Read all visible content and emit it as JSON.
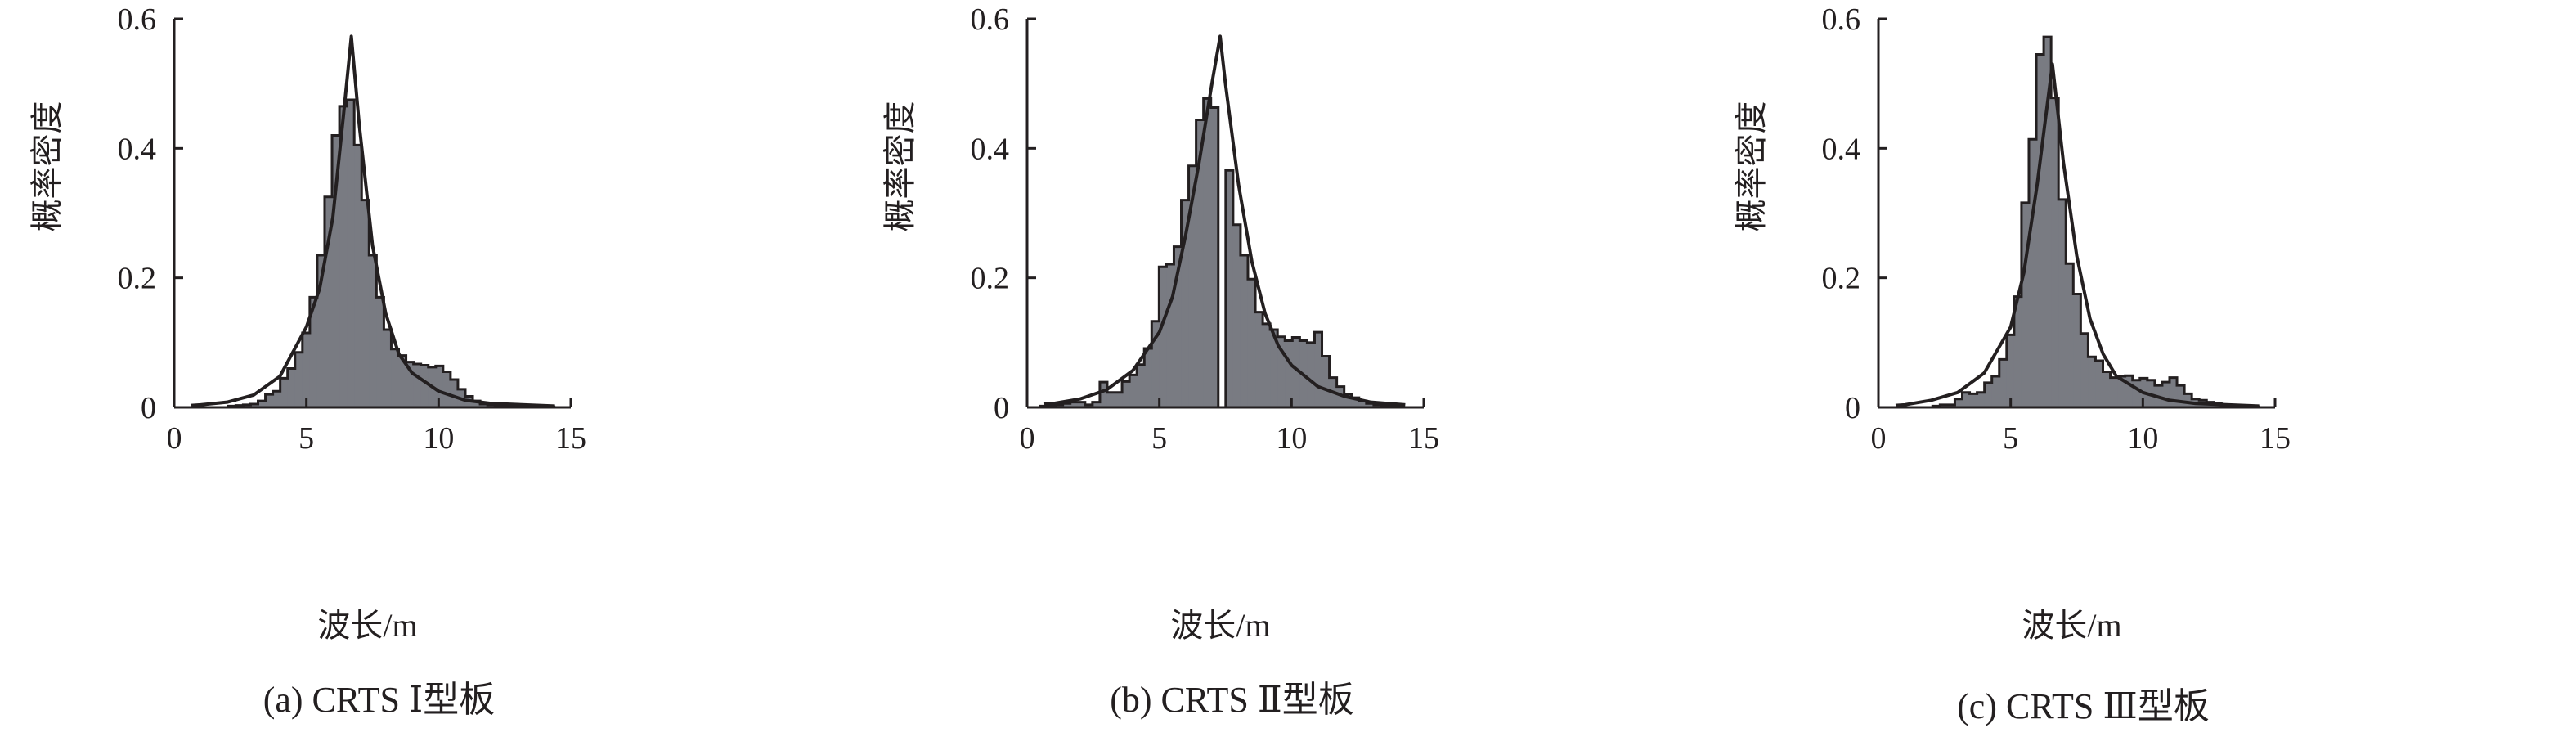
{
  "colors": {
    "bar_fill": "#797b82",
    "line": "#231f20"
  },
  "chart_data": [
    {
      "type": "bar",
      "caption": "(a) CRTS Ⅰ型板",
      "xlabel": "波长/m",
      "ylabel": "概率密度",
      "xlim": [
        0,
        15
      ],
      "ylim": [
        0,
        0.6
      ],
      "xticks": [
        "0",
        "5",
        "10",
        "15"
      ],
      "yticks": [
        "0",
        "0.2",
        "0.4",
        "0.6"
      ],
      "xtick_values": [
        0,
        5,
        10,
        15
      ],
      "ytick_values": [
        0,
        0.2,
        0.4,
        0.6
      ],
      "histogram": {
        "bin_start": 2.05,
        "bin_width": 0.28,
        "values": [
          0.002,
          0.003,
          0.004,
          0.005,
          0.01,
          0.02,
          0.025,
          0.045,
          0.06,
          0.085,
          0.115,
          0.17,
          0.235,
          0.325,
          0.42,
          0.465,
          0.475,
          0.405,
          0.32,
          0.235,
          0.17,
          0.12,
          0.09,
          0.08,
          0.07,
          0.067,
          0.065,
          0.062,
          0.064,
          0.055,
          0.043,
          0.028,
          0.017,
          0.01,
          0.005,
          0.004,
          0.003,
          0.003,
          0.002,
          0.002,
          0.002,
          0.001,
          0.001,
          0.001
        ]
      },
      "fit_curve": {
        "x": [
          0.65,
          1,
          2,
          3,
          4,
          5,
          5.5,
          6,
          6.4,
          6.7,
          7,
          7.5,
          8,
          8.5,
          9,
          10,
          11,
          12,
          14.4
        ],
        "y": [
          0.003,
          0.004,
          0.008,
          0.019,
          0.048,
          0.124,
          0.183,
          0.293,
          0.45,
          0.573,
          0.436,
          0.25,
          0.145,
          0.082,
          0.053,
          0.025,
          0.011,
          0.006,
          0.002
        ]
      }
    },
    {
      "type": "bar",
      "caption": "(b) CRTS Ⅱ型板",
      "xlabel": "波长/m",
      "ylabel": "概率密度",
      "xlim": [
        0,
        15
      ],
      "ylim": [
        0,
        0.6
      ],
      "xticks": [
        "0",
        "5",
        "10",
        "15"
      ],
      "yticks": [
        "0",
        "0.2",
        "0.4",
        "0.6"
      ],
      "xtick_values": [
        0,
        5,
        10,
        15
      ],
      "ytick_values": [
        0,
        0.2,
        0.4,
        0.6
      ],
      "histogram": {
        "bin_start": 0.51,
        "bin_width": 0.28,
        "values": [
          0.002,
          0.003,
          0.004,
          0.006,
          0.008,
          0.008,
          0.004,
          0.008,
          0.039,
          0.023,
          0.023,
          0.04,
          0.05,
          0.066,
          0.091,
          0.133,
          0.217,
          0.221,
          0.248,
          0.32,
          0.373,
          0.444,
          0.477,
          0.463,
          0,
          0.366,
          0.282,
          0.235,
          0.198,
          0.147,
          0.129,
          0.12,
          0.109,
          0.103,
          0.108,
          0.103,
          0.1,
          0.116,
          0.079,
          0.046,
          0.032,
          0.02,
          0.015,
          0.01,
          0.006,
          0.004,
          0.003,
          0.002,
          0.001
        ]
      },
      "fit_curve": {
        "x": [
          0.65,
          1,
          2,
          3,
          4,
          5,
          5.5,
          6,
          6.5,
          7,
          7.3,
          7.5,
          8,
          8.5,
          9,
          9.5,
          10,
          11,
          12,
          13,
          14.3
        ],
        "y": [
          0.005,
          0.006,
          0.013,
          0.027,
          0.057,
          0.116,
          0.171,
          0.267,
          0.377,
          0.503,
          0.573,
          0.5,
          0.343,
          0.225,
          0.145,
          0.095,
          0.065,
          0.032,
          0.017,
          0.008,
          0.004
        ]
      }
    },
    {
      "type": "bar",
      "caption": "(c) CRTS Ⅲ型板",
      "xlabel": "波长/m",
      "ylabel": "概率密度",
      "xlim": [
        0,
        15
      ],
      "ylim": [
        0,
        0.6
      ],
      "xticks": [
        "0",
        "5",
        "10",
        "15"
      ],
      "yticks": [
        "0",
        "0.2",
        "0.4",
        "0.6"
      ],
      "xtick_values": [
        0,
        5,
        10,
        15
      ],
      "ytick_values": [
        0,
        0.2,
        0.4,
        0.6
      ],
      "histogram": {
        "bin_start": 2.05,
        "bin_width": 0.28,
        "values": [
          0.002,
          0.004,
          0.004,
          0.013,
          0.023,
          0.021,
          0.023,
          0.038,
          0.048,
          0.074,
          0.112,
          0.171,
          0.316,
          0.414,
          0.545,
          0.572,
          0.478,
          0.321,
          0.222,
          0.175,
          0.114,
          0.078,
          0.072,
          0.055,
          0.046,
          0.048,
          0.049,
          0.042,
          0.045,
          0.042,
          0.034,
          0.039,
          0.046,
          0.034,
          0.021,
          0.013,
          0.011,
          0.008,
          0.006,
          0.004,
          0.003,
          0.002,
          0.002,
          0.001
        ]
      },
      "fit_curve": {
        "x": [
          0.65,
          1,
          2,
          3,
          4,
          5,
          5.5,
          6,
          6.3,
          6.58,
          7,
          7.5,
          8,
          8.5,
          9,
          10,
          11,
          12,
          14.4
        ],
        "y": [
          0.003,
          0.004,
          0.011,
          0.023,
          0.053,
          0.124,
          0.208,
          0.343,
          0.44,
          0.53,
          0.377,
          0.234,
          0.137,
          0.082,
          0.048,
          0.023,
          0.011,
          0.006,
          0.002
        ]
      }
    }
  ]
}
